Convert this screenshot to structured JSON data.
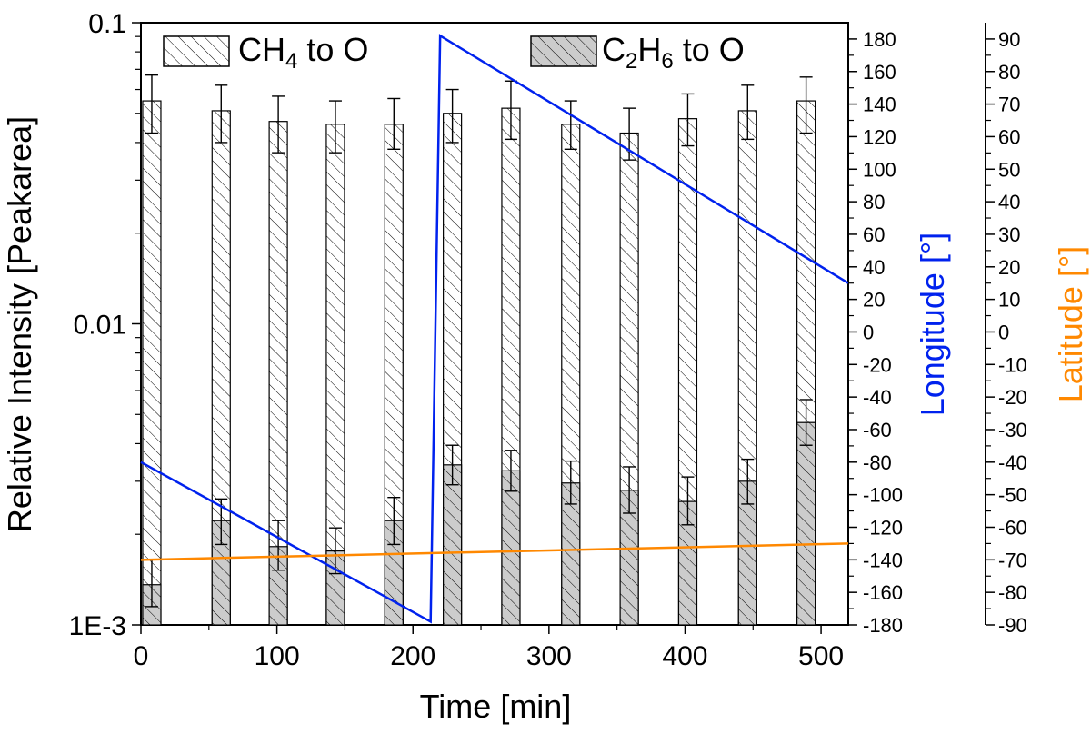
{
  "chart_data": {
    "type": "bar",
    "xlabel": "Time [min]",
    "ylabel": "Relative Intensity [Peakarea]",
    "y2label": "Longitude [°]",
    "y3label": "Latitude [°]",
    "xlim": [
      0,
      520
    ],
    "ylim": [
      0.001,
      0.1
    ],
    "yscale": "log",
    "y2lim": [
      -180,
      190
    ],
    "y3lim": [
      -90,
      95
    ],
    "xticks": [
      "0",
      "100",
      "200",
      "300",
      "400",
      "500"
    ],
    "yticks": [
      "1E-3",
      "0.01",
      "0.1"
    ],
    "y2ticks": [
      "-180",
      "-160",
      "-140",
      "-120",
      "-100",
      "-80",
      "-60",
      "-40",
      "-20",
      "0",
      "20",
      "40",
      "60",
      "80",
      "100",
      "120",
      "140",
      "160",
      "180"
    ],
    "y3ticks": [
      "-90",
      "-80",
      "-70",
      "-60",
      "-50",
      "-40",
      "-30",
      "-20",
      "-10",
      "0",
      "10",
      "20",
      "30",
      "40",
      "50",
      "60",
      "70",
      "80",
      "90"
    ],
    "x": [
      8,
      59,
      101,
      143,
      186,
      229,
      272,
      316,
      359,
      402,
      446,
      489
    ],
    "series": [
      {
        "name": "CH4 to O",
        "legend": {
          "base": "CH",
          "sub": "4",
          "rest": " to O"
        },
        "pattern": "hatched",
        "values": [
          0.055,
          0.051,
          0.047,
          0.046,
          0.046,
          0.05,
          0.052,
          0.046,
          0.043,
          0.048,
          0.051,
          0.055
        ],
        "errors_upper": [
          0.067,
          0.062,
          0.057,
          0.055,
          0.056,
          0.06,
          0.064,
          0.055,
          0.052,
          0.058,
          0.062,
          0.066
        ],
        "errors_lower": [
          0.043,
          0.04,
          0.037,
          0.037,
          0.038,
          0.04,
          0.041,
          0.038,
          0.035,
          0.039,
          0.041,
          0.043
        ]
      },
      {
        "name": "C2H6 to O",
        "legend": {
          "base": "C",
          "sub": "2",
          "rest": "H",
          "sub2": "6",
          "rest2": " to O"
        },
        "pattern": "hatched-grey",
        "values": [
          0.00136,
          0.00222,
          0.00182,
          0.00176,
          0.00222,
          0.0034,
          0.00325,
          0.00296,
          0.0028,
          0.00257,
          0.003,
          0.0047
        ],
        "errors_upper": [
          0.00165,
          0.00262,
          0.00222,
          0.0021,
          0.00265,
          0.00395,
          0.0038,
          0.0035,
          0.00335,
          0.0031,
          0.00355,
          0.0056
        ],
        "errors_lower": [
          0.00115,
          0.00185,
          0.00152,
          0.00148,
          0.00185,
          0.00292,
          0.00278,
          0.00252,
          0.00235,
          0.00215,
          0.00252,
          0.00395
        ]
      }
    ],
    "lines": [
      {
        "name": "Longitude",
        "axis": "y2",
        "color": "#0022ee",
        "x": [
          0,
          213,
          213,
          220,
          520
        ],
        "y": [
          -80,
          -178,
          -178,
          182,
          30
        ]
      },
      {
        "name": "Latitude",
        "axis": "y3",
        "color": "#ff8800",
        "x": [
          0,
          520
        ],
        "y": [
          -70,
          -65
        ]
      }
    ]
  }
}
